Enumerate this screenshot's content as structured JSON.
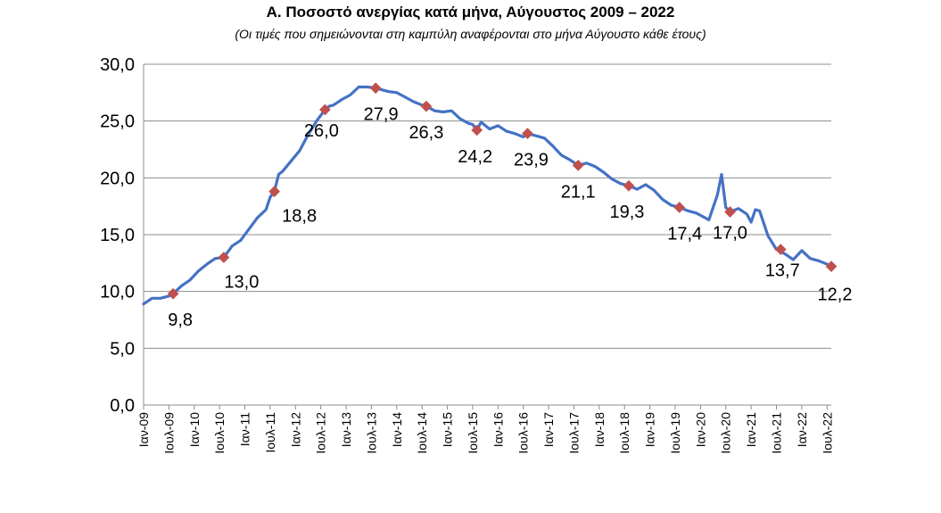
{
  "chart_data": {
    "type": "line",
    "title": "Α. Ποσοστό ανεργίας κατά μήνα, Αύγουστος 2009 – 2022",
    "subtitle": "(Οι τιμές που σημειώνονται στη καμπύλη αναφέρονται στο μήνα Αύγουστο κάθε έτους)",
    "ylim": [
      0,
      30
    ],
    "yticks": [
      "0,0",
      "5,0",
      "10,0",
      "15,0",
      "20,0",
      "25,0",
      "30,0"
    ],
    "ytick_values": [
      0,
      5,
      10,
      15,
      20,
      25,
      30
    ],
    "xticks": [
      "Ιαν-09",
      "Ιουλ-09",
      "Ιαν-10",
      "Ιουλ-10",
      "Ιαν-11",
      "Ιουλ-11",
      "Ιαν-12",
      "Ιουλ-12",
      "Ιαν-13",
      "Ιουλ-13",
      "Ιαν-14",
      "Ιουλ-14",
      "Ιαν-15",
      "Ιουλ-15",
      "Ιαν-16",
      "Ιουλ-16",
      "Ιαν-17",
      "Ιουλ-17",
      "Ιαν-18",
      "Ιουλ-18",
      "Ιαν-19",
      "Ιουλ-19",
      "Ιαν-20",
      "Ιουλ-20",
      "Ιαν-21",
      "Ιουλ-21",
      "Ιαν-22",
      "Ιουλ-22"
    ],
    "grid": true,
    "line_color": "#4472C4",
    "marker_color": "#C0504D",
    "monthly_series": [
      {
        "t": 0,
        "v": 8.9
      },
      {
        "t": 2,
        "v": 9.4
      },
      {
        "t": 4,
        "v": 9.4
      },
      {
        "t": 6,
        "v": 9.6
      },
      {
        "t": 7,
        "v": 9.8
      },
      {
        "t": 9,
        "v": 10.5
      },
      {
        "t": 11,
        "v": 11.0
      },
      {
        "t": 13,
        "v": 11.8
      },
      {
        "t": 15,
        "v": 12.4
      },
      {
        "t": 17,
        "v": 12.9
      },
      {
        "t": 19,
        "v": 13.0
      },
      {
        "t": 21,
        "v": 14.0
      },
      {
        "t": 23,
        "v": 14.5
      },
      {
        "t": 25,
        "v": 15.5
      },
      {
        "t": 27,
        "v": 16.5
      },
      {
        "t": 29,
        "v": 17.2
      },
      {
        "t": 30,
        "v": 18.3
      },
      {
        "t": 31,
        "v": 18.8
      },
      {
        "t": 32,
        "v": 20.3
      },
      {
        "t": 33,
        "v": 20.6
      },
      {
        "t": 35,
        "v": 21.5
      },
      {
        "t": 37,
        "v": 22.4
      },
      {
        "t": 39,
        "v": 23.8
      },
      {
        "t": 41,
        "v": 25.0
      },
      {
        "t": 43,
        "v": 26.0
      },
      {
        "t": 44,
        "v": 26.3
      },
      {
        "t": 45,
        "v": 26.4
      },
      {
        "t": 47,
        "v": 26.9
      },
      {
        "t": 49,
        "v": 27.3
      },
      {
        "t": 51,
        "v": 28.0
      },
      {
        "t": 53,
        "v": 28.0
      },
      {
        "t": 55,
        "v": 27.9
      },
      {
        "t": 57,
        "v": 27.7
      },
      {
        "t": 58,
        "v": 27.6
      },
      {
        "t": 60,
        "v": 27.5
      },
      {
        "t": 62,
        "v": 27.1
      },
      {
        "t": 64,
        "v": 26.7
      },
      {
        "t": 66,
        "v": 26.4
      },
      {
        "t": 67,
        "v": 26.3
      },
      {
        "t": 69,
        "v": 25.9
      },
      {
        "t": 71,
        "v": 25.8
      },
      {
        "t": 73,
        "v": 25.9
      },
      {
        "t": 75,
        "v": 25.2
      },
      {
        "t": 77,
        "v": 24.8
      },
      {
        "t": 78,
        "v": 24.7
      },
      {
        "t": 79,
        "v": 24.2
      },
      {
        "t": 80,
        "v": 24.9
      },
      {
        "t": 82,
        "v": 24.3
      },
      {
        "t": 84,
        "v": 24.6
      },
      {
        "t": 86,
        "v": 24.1
      },
      {
        "t": 88,
        "v": 23.9
      },
      {
        "t": 90,
        "v": 23.6
      },
      {
        "t": 91,
        "v": 23.9
      },
      {
        "t": 93,
        "v": 23.7
      },
      {
        "t": 95,
        "v": 23.5
      },
      {
        "t": 97,
        "v": 22.8
      },
      {
        "t": 99,
        "v": 22.0
      },
      {
        "t": 101,
        "v": 21.6
      },
      {
        "t": 103,
        "v": 21.1
      },
      {
        "t": 105,
        "v": 21.3
      },
      {
        "t": 107,
        "v": 21.0
      },
      {
        "t": 109,
        "v": 20.5
      },
      {
        "t": 111,
        "v": 19.9
      },
      {
        "t": 113,
        "v": 19.5
      },
      {
        "t": 115,
        "v": 19.3
      },
      {
        "t": 117,
        "v": 19.0
      },
      {
        "t": 119,
        "v": 19.4
      },
      {
        "t": 121,
        "v": 18.9
      },
      {
        "t": 123,
        "v": 18.1
      },
      {
        "t": 125,
        "v": 17.6
      },
      {
        "t": 127,
        "v": 17.4
      },
      {
        "t": 129,
        "v": 17.1
      },
      {
        "t": 131,
        "v": 16.9
      },
      {
        "t": 133,
        "v": 16.5
      },
      {
        "t": 134,
        "v": 16.3
      },
      {
        "t": 136,
        "v": 18.5
      },
      {
        "t": 137,
        "v": 20.3
      },
      {
        "t": 138,
        "v": 17.4
      },
      {
        "t": 139,
        "v": 17.0
      },
      {
        "t": 141,
        "v": 17.3
      },
      {
        "t": 143,
        "v": 16.8
      },
      {
        "t": 144,
        "v": 16.1
      },
      {
        "t": 145,
        "v": 17.2
      },
      {
        "t": 146,
        "v": 17.1
      },
      {
        "t": 148,
        "v": 14.9
      },
      {
        "t": 150,
        "v": 13.7
      },
      {
        "t": 152,
        "v": 13.3
      },
      {
        "t": 154,
        "v": 12.8
      },
      {
        "t": 156,
        "v": 13.6
      },
      {
        "t": 158,
        "v": 12.9
      },
      {
        "t": 160,
        "v": 12.7
      },
      {
        "t": 162,
        "v": 12.4
      },
      {
        "t": 163,
        "v": 12.2
      }
    ],
    "august_points": [
      {
        "t": 7,
        "v": 9.8,
        "label": "9,8"
      },
      {
        "t": 19,
        "v": 13.0,
        "label": "13,0"
      },
      {
        "t": 31,
        "v": 18.8,
        "label": "18,8"
      },
      {
        "t": 43,
        "v": 26.0,
        "label": "26,0"
      },
      {
        "t": 55,
        "v": 27.9,
        "label": "27,9"
      },
      {
        "t": 67,
        "v": 26.3,
        "label": "26,3"
      },
      {
        "t": 79,
        "v": 24.2,
        "label": "24,2"
      },
      {
        "t": 91,
        "v": 23.9,
        "label": "23,9"
      },
      {
        "t": 103,
        "v": 21.1,
        "label": "21,1"
      },
      {
        "t": 115,
        "v": 19.3,
        "label": "19,3"
      },
      {
        "t": 127,
        "v": 17.4,
        "label": "17,4"
      },
      {
        "t": 139,
        "v": 17.0,
        "label": "17,0"
      },
      {
        "t": 151,
        "v": 13.7,
        "label": "13,7"
      },
      {
        "t": 163,
        "v": 12.2,
        "label": "12,2"
      }
    ]
  }
}
